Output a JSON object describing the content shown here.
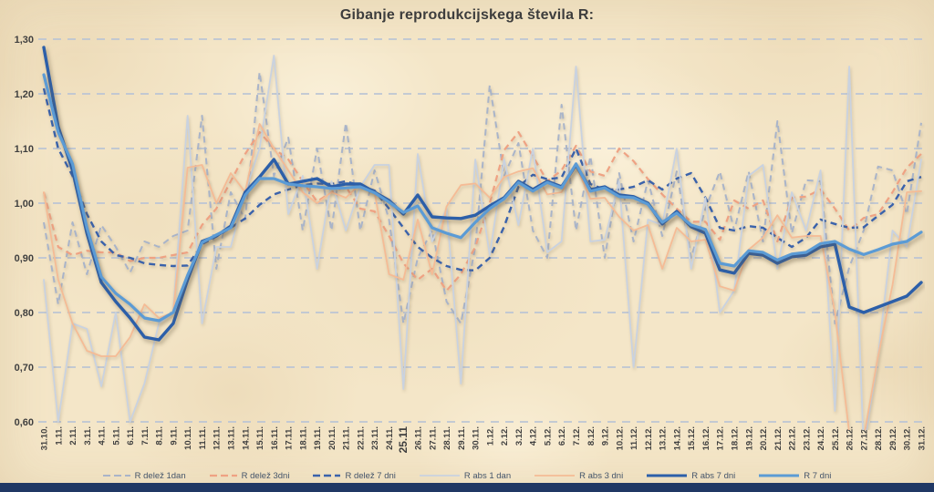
{
  "title": "Gibanje reprodukcijskega števila R:",
  "colors": {
    "background": "#f4e6c8",
    "footer_bar": "#203864",
    "gridline": "#bcc5d4",
    "title_text": "#3d3d3d",
    "axis_text": "#3f3f3f",
    "legend_text": "#44546a"
  },
  "chart_data": {
    "type": "line",
    "title": "Gibanje reprodukcijskega števila R:",
    "xlabel": "",
    "ylabel": "",
    "ylim": [
      0.6,
      1.3
    ],
    "grid": "horizontal-dashed",
    "legend_position": "bottom",
    "y_ticks": [
      {
        "label": "0,60",
        "value": 0.6
      },
      {
        "label": "0,70",
        "value": 0.7
      },
      {
        "label": "0,80",
        "value": 0.8
      },
      {
        "label": "0,90",
        "value": 0.9
      },
      {
        "label": "1,00",
        "value": 1.0
      },
      {
        "label": "1,10",
        "value": 1.1
      },
      {
        "label": "1,20",
        "value": 1.2
      },
      {
        "label": "1,30",
        "value": 1.3
      }
    ],
    "categories": [
      "31.10.",
      "1.11.",
      "2.11.",
      "3.11.",
      "4.11.",
      "5.11.",
      "6.11.",
      "7.11.",
      "8.11.",
      "9.11.",
      "10.11.",
      "11.11.",
      "12.11.",
      "13.11.",
      "14.11.",
      "15.11.",
      "16.11.",
      "17.11.",
      "18.11.",
      "19.11.",
      "20.11.",
      "21.11.",
      "22.11.",
      "23.11.",
      "24.11.",
      "25.11",
      "26.11.",
      "27.11.",
      "28.11.",
      "29.11.",
      "30.11.",
      "1.12.",
      "2.12.",
      "3.12.",
      "4.12.",
      "5.12.",
      "6.12.",
      "7.12.",
      "8.12.",
      "9.12.",
      "10.12.",
      "11.12.",
      "12.12.",
      "13.12.",
      "14.12.",
      "15.12.",
      "16.12.",
      "17.12.",
      "18.12.",
      "19.12.",
      "20.12.",
      "21.12.",
      "22.12.",
      "23.12.",
      "24.12.",
      "25.12.",
      "26.12.",
      "27.12.",
      "28.12.",
      "29.12.",
      "30.12.",
      "31.12."
    ],
    "series": [
      {
        "name": "R delež 1dan",
        "color": "#a9b4c9",
        "style": "dashed",
        "width": 2,
        "shadow": false,
        "values": [
          0.965,
          0.815,
          0.965,
          0.87,
          0.96,
          0.92,
          0.873,
          0.93,
          0.92,
          0.94,
          0.95,
          1.16,
          0.88,
          1.02,
          0.97,
          1.24,
          1.05,
          1.12,
          0.95,
          1.1,
          0.95,
          1.147,
          0.95,
          1.06,
          0.97,
          0.78,
          0.9,
          0.95,
          0.82,
          0.78,
          0.92,
          1.216,
          1.05,
          1.11,
          0.95,
          0.9,
          1.18,
          0.95,
          1.086,
          0.9,
          1.055,
          0.93,
          1.042,
          0.94,
          1.058,
          0.9,
          0.99,
          1.058,
          0.95,
          1.058,
          0.93,
          1.15,
          0.945,
          1.042,
          1.04,
          0.78,
          0.883,
          0.95,
          1.067,
          1.06,
          0.98,
          1.147
        ]
      },
      {
        "name": "R delež 3dni",
        "color": "#efa283",
        "style": "dashed",
        "width": 2.2,
        "shadow": false,
        "values": [
          1.02,
          0.92,
          0.905,
          0.913,
          0.91,
          0.91,
          0.894,
          0.9,
          0.9,
          0.905,
          0.91,
          0.96,
          0.99,
          1.04,
          1.09,
          1.13,
          1.1,
          1.08,
          1.04,
          1.003,
          1.02,
          1.03,
          0.99,
          0.985,
          0.94,
          0.89,
          0.86,
          0.88,
          0.84,
          0.87,
          0.92,
          1.0,
          1.097,
          1.13,
          1.086,
          1.04,
          1.06,
          1.105,
          1.058,
          1.05,
          1.1,
          1.077,
          1.044,
          1.016,
          0.99,
          0.966,
          0.966,
          0.933,
          1.005,
          0.99,
          1.005,
          0.93,
          1.01,
          1.012,
          1.025,
          0.99,
          0.95,
          0.973,
          0.98,
          1.02,
          1.065,
          1.09
        ]
      },
      {
        "name": "R delež 7 dni",
        "color": "#3a62ab",
        "style": "dashed",
        "width": 2.4,
        "shadow": false,
        "values": [
          1.21,
          1.1,
          1.05,
          0.98,
          0.93,
          0.905,
          0.9,
          0.89,
          0.887,
          0.885,
          0.886,
          0.925,
          0.939,
          0.955,
          0.972,
          0.997,
          1.016,
          1.025,
          1.033,
          1.036,
          1.035,
          1.04,
          1.032,
          1.023,
          0.99,
          0.955,
          0.92,
          0.9,
          0.885,
          0.878,
          0.877,
          0.9,
          0.957,
          1.03,
          1.052,
          1.044,
          1.047,
          1.1,
          1.035,
          1.025,
          1.025,
          1.03,
          1.042,
          1.025,
          1.045,
          1.055,
          1.01,
          0.955,
          0.95,
          0.958,
          0.955,
          0.937,
          0.92,
          0.937,
          0.97,
          0.962,
          0.955,
          0.956,
          0.977,
          0.997,
          1.04,
          1.048
        ]
      },
      {
        "name": "R abs 1 dan",
        "color": "#c9d2e0",
        "style": "solid",
        "width": 1.8,
        "shadow": false,
        "values": [
          0.86,
          0.6,
          0.78,
          0.77,
          0.665,
          0.8,
          0.6,
          0.67,
          0.78,
          0.8,
          1.16,
          0.78,
          0.92,
          0.92,
          1.02,
          1.1,
          1.27,
          0.98,
          1.05,
          0.88,
          1.04,
          0.95,
          1.03,
          1.07,
          1.07,
          0.66,
          1.09,
          0.93,
          0.99,
          0.67,
          1.08,
          0.905,
          1.08,
          0.96,
          1.1,
          0.91,
          0.93,
          1.25,
          0.93,
          0.933,
          1.04,
          0.7,
          0.97,
          0.96,
          1.1,
          0.88,
          1.01,
          0.8,
          0.84,
          1.05,
          1.07,
          0.88,
          1.02,
          0.95,
          1.06,
          0.62,
          1.25,
          0.55,
          0.72,
          0.95,
          0.92,
          1.08
        ]
      },
      {
        "name": "R abs 3 dni",
        "color": "#f5bb95",
        "style": "solid",
        "width": 1.8,
        "shadow": false,
        "values": [
          1.02,
          0.86,
          0.78,
          0.73,
          0.72,
          0.72,
          0.755,
          0.815,
          0.79,
          0.8,
          1.065,
          1.07,
          1.0,
          1.055,
          1.02,
          1.145,
          1.1,
          1.06,
          1.02,
          1.0,
          1.02,
          1.01,
          1.035,
          1.02,
          0.87,
          0.86,
          0.97,
          0.87,
          0.994,
          1.033,
          1.036,
          1.01,
          1.048,
          1.058,
          1.064,
          1.016,
          1.02,
          1.069,
          1.008,
          1.01,
          0.975,
          0.95,
          0.96,
          0.88,
          0.955,
          0.93,
          0.933,
          0.848,
          0.84,
          0.915,
          0.937,
          0.978,
          0.937,
          0.94,
          0.94,
          0.8,
          0.58,
          0.57,
          0.72,
          0.85,
          1.02,
          1.022
        ]
      },
      {
        "name": "R abs 7 dni",
        "color": "#2c5fa9",
        "style": "solid",
        "width": 3.4,
        "shadow": true,
        "values": [
          1.285,
          1.14,
          1.06,
          0.945,
          0.855,
          0.82,
          0.79,
          0.755,
          0.75,
          0.78,
          0.86,
          0.93,
          0.94,
          0.958,
          1.02,
          1.048,
          1.08,
          1.035,
          1.04,
          1.045,
          1.03,
          1.035,
          1.035,
          1.02,
          1.005,
          0.98,
          1.015,
          0.975,
          0.973,
          0.972,
          0.978,
          0.995,
          1.01,
          1.04,
          1.025,
          1.04,
          1.03,
          1.07,
          1.025,
          1.03,
          1.015,
          1.012,
          1.0,
          0.962,
          0.985,
          0.957,
          0.945,
          0.878,
          0.872,
          0.908,
          0.905,
          0.89,
          0.902,
          0.905,
          0.92,
          0.925,
          0.81,
          0.8,
          0.81,
          0.82,
          0.83,
          0.855
        ]
      },
      {
        "name": "R 7 dni",
        "color": "#5b9bd5",
        "style": "solid",
        "width": 3.2,
        "shadow": true,
        "values": [
          1.235,
          1.13,
          1.072,
          0.955,
          0.865,
          0.835,
          0.815,
          0.79,
          0.785,
          0.8,
          0.868,
          0.928,
          0.942,
          0.955,
          1.015,
          1.045,
          1.045,
          1.035,
          1.032,
          1.03,
          1.027,
          1.028,
          1.03,
          1.019,
          1.002,
          0.983,
          0.995,
          0.955,
          0.945,
          0.937,
          0.965,
          0.99,
          1.008,
          1.038,
          1.022,
          1.038,
          1.028,
          1.072,
          1.022,
          1.028,
          1.012,
          1.01,
          0.998,
          0.965,
          0.982,
          0.96,
          0.952,
          0.89,
          0.885,
          0.913,
          0.91,
          0.896,
          0.907,
          0.91,
          0.926,
          0.93,
          0.916,
          0.906,
          0.915,
          0.925,
          0.93,
          0.947
        ]
      }
    ]
  }
}
